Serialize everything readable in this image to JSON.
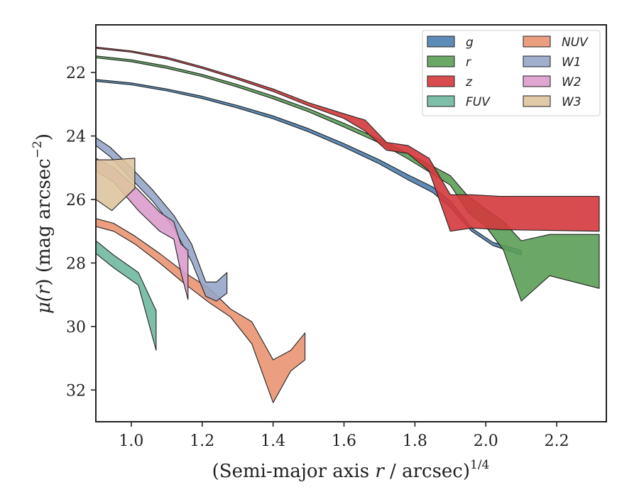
{
  "chart_data": {
    "type": "area",
    "xlabel_main": "(Semi-major axis ",
    "xlabel_var": "r",
    "xlabel_rest": " / arcsec)",
    "xlabel_sup": "1/4",
    "ylabel_main": "μ(",
    "ylabel_var": "r",
    "ylabel_rest": ") (mag arcsec",
    "ylabel_sup": "−2",
    "ylabel_end": ")",
    "xlim": [
      0.9,
      2.34
    ],
    "ylim": [
      33.0,
      20.5
    ],
    "y_inverted": true,
    "xticks": [
      1.0,
      1.2,
      1.4,
      1.6,
      1.8,
      2.0,
      2.2
    ],
    "xtick_labels": [
      "1.0",
      "1.2",
      "1.4",
      "1.6",
      "1.8",
      "2.0",
      "2.2"
    ],
    "yticks": [
      22,
      24,
      26,
      28,
      30,
      32
    ],
    "ytick_labels": [
      "22",
      "24",
      "26",
      "28",
      "30",
      "32"
    ],
    "legend_position": "top-right",
    "legend_columns": 2,
    "series": [
      {
        "name": "g",
        "color": "#4c7fb0",
        "x": [
          0.9,
          1.0,
          1.1,
          1.2,
          1.3,
          1.4,
          1.5,
          1.6,
          1.7,
          1.78,
          1.85,
          1.9,
          1.96,
          2.02,
          2.1
        ],
        "y_upper": [
          22.22,
          22.33,
          22.52,
          22.75,
          23.04,
          23.37,
          23.77,
          24.24,
          24.75,
          25.22,
          25.6,
          26.05,
          26.9,
          27.35,
          27.6
        ],
        "y_lower": [
          22.28,
          22.39,
          22.58,
          22.82,
          23.12,
          23.46,
          23.87,
          24.35,
          24.88,
          25.38,
          25.78,
          26.25,
          27.0,
          27.45,
          27.75
        ]
      },
      {
        "name": "r",
        "color": "#5b9e58",
        "x": [
          0.9,
          1.0,
          1.1,
          1.2,
          1.3,
          1.4,
          1.5,
          1.6,
          1.7,
          1.78,
          1.85,
          1.9,
          1.95,
          2.0,
          2.05,
          2.1,
          2.18,
          2.32
        ],
        "y_upper": [
          21.48,
          21.6,
          21.8,
          22.06,
          22.38,
          22.74,
          23.14,
          23.6,
          24.1,
          24.55,
          24.95,
          25.25,
          25.9,
          26.3,
          26.7,
          27.3,
          27.1,
          27.1
        ],
        "y_lower": [
          21.54,
          21.66,
          21.87,
          22.13,
          22.46,
          22.83,
          23.24,
          23.72,
          24.22,
          24.72,
          25.2,
          25.55,
          26.4,
          26.85,
          27.6,
          29.2,
          28.4,
          28.8
        ]
      },
      {
        "name": "z",
        "color": "#d4393c",
        "x": [
          0.9,
          1.0,
          1.1,
          1.2,
          1.3,
          1.4,
          1.5,
          1.6,
          1.66,
          1.72,
          1.78,
          1.84,
          1.9,
          1.96,
          2.04,
          2.32
        ],
        "y_upper": [
          21.2,
          21.32,
          21.52,
          21.82,
          22.16,
          22.52,
          22.95,
          23.3,
          23.5,
          24.2,
          24.3,
          24.7,
          25.85,
          25.85,
          25.9,
          25.9
        ],
        "y_lower": [
          21.24,
          21.36,
          21.57,
          21.87,
          22.22,
          22.6,
          23.05,
          23.45,
          23.85,
          24.45,
          24.55,
          25.1,
          27.0,
          26.9,
          26.95,
          27.0
        ]
      },
      {
        "name": "FUV",
        "color": "#6fb89f",
        "x": [
          0.9,
          0.95,
          1.02,
          1.07
        ],
        "y_upper": [
          27.3,
          27.75,
          28.3,
          29.5
        ],
        "y_lower": [
          27.7,
          28.15,
          28.7,
          30.75
        ]
      },
      {
        "name": "NUV",
        "color": "#ea9373",
        "x": [
          0.9,
          0.95,
          1.01,
          1.08,
          1.15,
          1.22,
          1.28,
          1.34,
          1.4,
          1.45,
          1.49
        ],
        "y_upper": [
          26.6,
          26.75,
          27.15,
          27.7,
          28.3,
          28.8,
          29.45,
          29.85,
          31.05,
          30.75,
          30.2
        ],
        "y_lower": [
          26.85,
          27.0,
          27.4,
          28.0,
          28.65,
          29.25,
          29.7,
          30.55,
          32.4,
          31.4,
          31.05
        ]
      },
      {
        "name": "W1",
        "color": "#96a6c8",
        "x": [
          0.9,
          0.94,
          1.0,
          1.06,
          1.12,
          1.17,
          1.21,
          1.24,
          1.27
        ],
        "y_upper": [
          24.05,
          24.35,
          25.0,
          25.7,
          26.5,
          27.4,
          28.6,
          28.6,
          28.3
        ],
        "y_lower": [
          24.3,
          24.65,
          25.35,
          26.05,
          26.9,
          27.95,
          29.05,
          29.2,
          28.95
        ]
      },
      {
        "name": "W2",
        "color": "#da9ccb",
        "x": [
          0.9,
          0.95,
          1.02,
          1.08,
          1.12,
          1.14,
          1.16
        ],
        "y_upper": [
          24.7,
          25.0,
          25.7,
          26.4,
          26.7,
          27.4,
          27.6
        ],
        "y_lower": [
          25.1,
          25.45,
          26.35,
          27.0,
          27.25,
          28.3,
          29.15
        ]
      },
      {
        "name": "W3",
        "color": "#dec49f",
        "x": [
          0.9,
          0.945,
          1.01
        ],
        "y_upper": [
          24.75,
          24.75,
          24.7
        ],
        "y_lower": [
          26.0,
          26.35,
          25.65
        ]
      }
    ]
  }
}
